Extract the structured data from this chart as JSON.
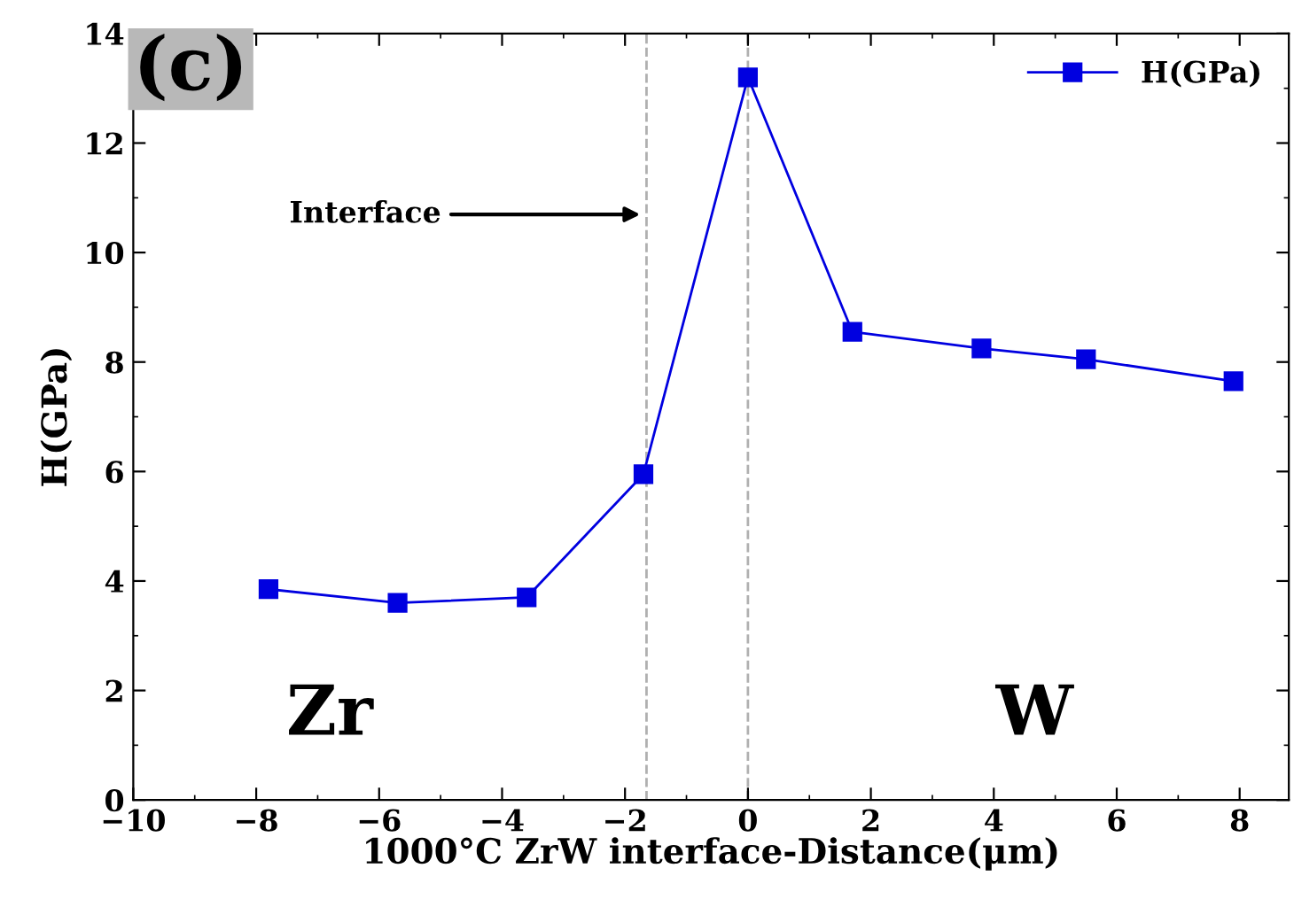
{
  "chart_data": {
    "type": "line",
    "xlabel": "1000°C ZrW interface-Distance(μm)",
    "ylabel": "H(GPa)",
    "x": [
      -7.8,
      -5.7,
      -3.6,
      -1.7,
      0,
      1.7,
      3.8,
      5.5,
      7.9
    ],
    "series": [
      {
        "name": "H(GPa)",
        "color": "#0000e0",
        "values": [
          3.85,
          3.6,
          3.7,
          5.95,
          13.2,
          8.55,
          8.25,
          8.05,
          7.65
        ]
      }
    ],
    "xlim": [
      -10,
      8.8
    ],
    "xticks": [
      -10,
      -8,
      -6,
      -4,
      -2,
      0,
      2,
      4,
      6,
      8
    ],
    "ylim": [
      0,
      14
    ],
    "yticks": [
      0,
      2,
      4,
      6,
      8,
      10,
      12,
      14
    ],
    "ref_lines": [
      {
        "axis": "x",
        "value": -1.65,
        "color": "#b0b0b0",
        "line_style": "dashed"
      },
      {
        "axis": "x",
        "value": 0,
        "color": "#b0b0b0",
        "line_style": "dashed"
      }
    ],
    "annotations": [
      "(c)",
      "Interface",
      "Zr",
      "W"
    ],
    "marker": "square",
    "line_style": "solid",
    "grid": false,
    "legend": "top right"
  }
}
